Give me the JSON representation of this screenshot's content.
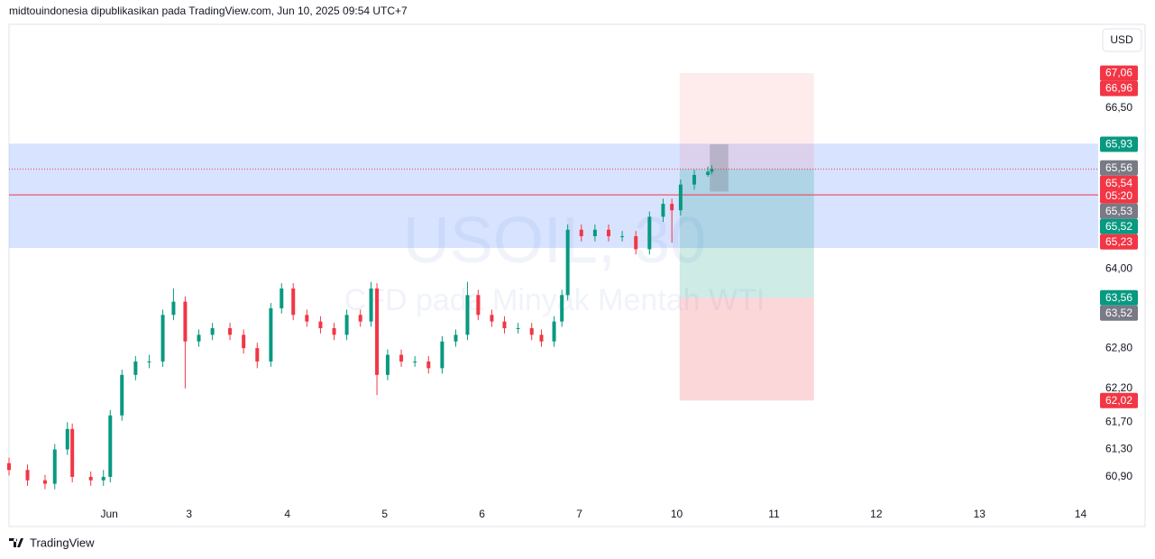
{
  "header": "midtouindonesia dipublikasikan pada TradingView.com, Jun 10, 2025 09:54 UTC+7",
  "footer": "TradingView",
  "chart_data": {
    "type": "candlestick",
    "title": "USOIL, 30",
    "subtitle": "CFD pada Minyak Mentah WTI",
    "currency": "USD",
    "log_scale": true,
    "up_color": "#089981",
    "down_color": "#f23645",
    "x": [
      -1.03,
      -0.84,
      -0.66,
      -0.56,
      -0.43,
      -0.38,
      -0.19,
      -0.06,
      0.01,
      0.13,
      0.27,
      0.41,
      0.55,
      0.66,
      0.78,
      0.92,
      1.06,
      1.24,
      1.38,
      1.52,
      1.66,
      1.77,
      1.89,
      2.03,
      2.17,
      2.31,
      2.44,
      2.58,
      2.69,
      2.75,
      2.86,
      3.0,
      3.14,
      3.28,
      3.42,
      3.56,
      3.68,
      3.79,
      3.93,
      4.06,
      4.2,
      4.34,
      4.44,
      4.57,
      4.65,
      4.71,
      4.85,
      4.99,
      5.13,
      5.27,
      5.41,
      5.55,
      5.69,
      5.78,
      5.87,
      6.01,
      6.15,
      6.19
    ],
    "open": [
      61.1,
      61.0,
      60.85,
      60.8,
      61.3,
      61.6,
      60.9,
      60.85,
      60.9,
      61.8,
      62.4,
      62.6,
      62.6,
      63.3,
      63.5,
      62.9,
      63.0,
      63.1,
      63.0,
      62.8,
      62.6,
      63.4,
      63.7,
      63.3,
      63.2,
      63.1,
      63.0,
      63.3,
      63.2,
      63.7,
      62.4,
      62.7,
      62.6,
      62.6,
      62.5,
      62.9,
      63.0,
      63.6,
      63.3,
      63.2,
      63.1,
      63.1,
      63.0,
      62.9,
      63.2,
      63.6,
      64.6,
      64.5,
      64.6,
      64.5,
      64.5,
      64.3,
      64.8,
      65.0,
      64.9,
      65.3,
      65.45,
      65.5
    ],
    "high": [
      61.18,
      61.08,
      60.93,
      61.38,
      61.7,
      61.68,
      60.98,
      61.0,
      61.88,
      62.48,
      62.68,
      62.7,
      63.38,
      63.7,
      63.58,
      63.08,
      63.18,
      63.18,
      63.08,
      62.88,
      63.48,
      63.78,
      63.78,
      63.38,
      63.28,
      63.18,
      63.38,
      63.38,
      63.8,
      63.78,
      62.78,
      62.78,
      62.68,
      62.68,
      62.98,
      63.08,
      63.8,
      63.68,
      63.38,
      63.28,
      63.18,
      63.18,
      63.08,
      63.28,
      63.68,
      64.68,
      64.68,
      64.68,
      64.68,
      64.58,
      64.58,
      64.88,
      65.08,
      65.08,
      65.38,
      65.53,
      65.58,
      65.6
    ],
    "low": [
      60.92,
      60.77,
      60.72,
      60.72,
      61.22,
      60.82,
      60.77,
      60.77,
      60.82,
      61.72,
      62.32,
      62.5,
      62.52,
      63.22,
      62.2,
      62.82,
      62.92,
      62.92,
      62.72,
      62.5,
      62.52,
      63.32,
      63.22,
      63.12,
      63.02,
      62.92,
      62.92,
      63.12,
      63.12,
      62.1,
      62.32,
      62.52,
      62.52,
      62.42,
      62.42,
      62.82,
      62.92,
      63.22,
      63.12,
      63.02,
      63.02,
      62.92,
      62.82,
      62.82,
      63.12,
      63.52,
      64.42,
      64.42,
      64.42,
      64.42,
      64.22,
      64.22,
      64.72,
      64.4,
      64.82,
      65.22,
      65.42,
      65.46
    ],
    "close": [
      61.0,
      60.85,
      60.8,
      61.3,
      61.6,
      60.9,
      60.85,
      60.9,
      61.8,
      62.4,
      62.6,
      62.6,
      63.3,
      63.5,
      62.9,
      63.0,
      63.1,
      63.0,
      62.8,
      62.6,
      63.4,
      63.7,
      63.3,
      63.2,
      63.1,
      63.0,
      63.3,
      63.2,
      63.7,
      62.4,
      62.7,
      62.6,
      62.6,
      62.5,
      62.9,
      63.0,
      63.6,
      63.3,
      63.2,
      63.1,
      63.1,
      63.0,
      62.9,
      63.2,
      63.6,
      64.6,
      64.5,
      64.6,
      64.5,
      64.5,
      64.3,
      64.8,
      65.0,
      64.9,
      65.3,
      65.45,
      65.5,
      65.54
    ],
    "xlim": [
      -1.03,
      10.16
    ],
    "xticks": [
      {
        "value": 0,
        "label": "Jun"
      },
      {
        "value": 0.82,
        "label": "3"
      },
      {
        "value": 1.83,
        "label": "4"
      },
      {
        "value": 2.83,
        "label": "5"
      },
      {
        "value": 3.83,
        "label": "6"
      },
      {
        "value": 4.83,
        "label": "7"
      },
      {
        "value": 5.83,
        "label": "10"
      },
      {
        "value": 6.83,
        "label": "11"
      },
      {
        "value": 7.88,
        "label": "12"
      },
      {
        "value": 8.94,
        "label": "13"
      },
      {
        "value": 9.98,
        "label": "14"
      }
    ],
    "ylim": [
      60.52,
      67.83
    ],
    "yticks": [
      {
        "value": 66.5,
        "label": "66,50"
      },
      {
        "value": 64,
        "label": "64,00"
      },
      {
        "value": 62.8,
        "label": "62,80"
      },
      {
        "value": 62.2,
        "label": "62,20"
      },
      {
        "value": 61.7,
        "label": "61,70"
      },
      {
        "value": 61.3,
        "label": "61,30"
      },
      {
        "value": 60.9,
        "label": "60,90"
      }
    ],
    "zones": [
      {
        "top": 65.94,
        "bottom": 64.32,
        "color": "rgba(41, 98, 255, 0.18)"
      }
    ],
    "boxes": [
      {
        "x0": 5.86,
        "x1": 7.24,
        "top": 67.06,
        "bottom": 65.54,
        "color": "rgba(242, 54, 69, 0.1)"
      },
      {
        "x0": 5.86,
        "x1": 7.24,
        "top": 65.54,
        "bottom": 63.56,
        "color": "rgba(8, 153, 129, 0.2)"
      },
      {
        "x0": 5.86,
        "x1": 7.24,
        "top": 63.56,
        "bottom": 62.02,
        "color": "rgba(242, 54, 69, 0.2)"
      },
      {
        "x0": 6.17,
        "x1": 6.36,
        "top": 65.93,
        "bottom": 65.19,
        "color": "rgba(120, 123, 134, 0.35)"
      }
    ],
    "lines": [
      {
        "value": 65.54,
        "style": "dotted",
        "color": "#f23645"
      },
      {
        "value": 65.14,
        "style": "solid",
        "color": "#f23645"
      }
    ],
    "price_labels": [
      {
        "value": 67.06,
        "label": "67,06",
        "color": "#f23645"
      },
      {
        "value": 66.96,
        "label": "66,96",
        "color": "#f23645"
      },
      {
        "value": 65.93,
        "label": "65,93",
        "color": "#089981"
      },
      {
        "value": 65.56,
        "label": "65,56",
        "color": "#787b86"
      },
      {
        "value": 65.54,
        "label": "65,54",
        "countdown": "05:20",
        "color": "#f23645"
      },
      {
        "value": 65.53,
        "label": "65,53",
        "color": "#787b86"
      },
      {
        "value": 65.52,
        "label": "65,52",
        "color": "#089981"
      },
      {
        "value": 65.23,
        "label": "65,23",
        "color": "#f23645"
      },
      {
        "value": 63.56,
        "label": "63,56",
        "color": "#089981"
      },
      {
        "value": 63.52,
        "label": "63,52",
        "color": "#787b86"
      },
      {
        "value": 62.02,
        "label": "62,02",
        "color": "#f23645"
      }
    ]
  }
}
